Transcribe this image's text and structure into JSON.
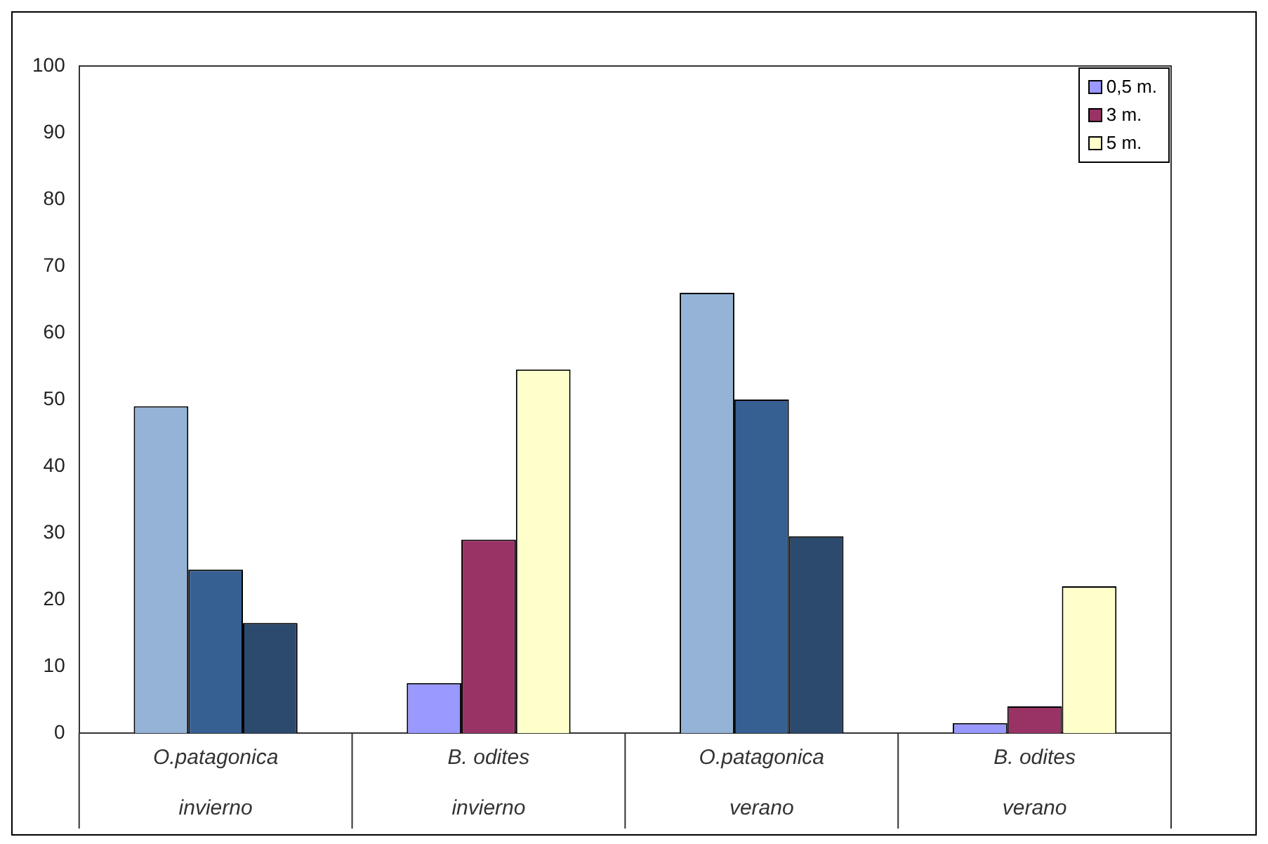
{
  "chart_data": {
    "type": "bar",
    "categories": [
      "O.patagonica\ninvierno",
      "B. odites\ninvierno",
      "O.patagonica\nverano",
      "B. odites\nverano"
    ],
    "series": [
      {
        "name": "0,5 m.",
        "color": "#9999ff",
        "colors": [
          "#95b3d7",
          "#9999ff",
          "#95b3d7",
          "#9999ff"
        ],
        "values": [
          49,
          7.5,
          66,
          1.5
        ]
      },
      {
        "name": "3 m.",
        "color": "#993366",
        "colors": [
          "#376092",
          "#993366",
          "#376092",
          "#993366"
        ],
        "values": [
          24.5,
          29,
          50,
          4
        ]
      },
      {
        "name": "5 m.",
        "color": "#ffffcc",
        "colors": [
          "#2c4a6e",
          "#ffffcc",
          "#2c4a6e",
          "#ffffcc"
        ],
        "values": [
          16.5,
          54.5,
          29.5,
          22
        ]
      }
    ],
    "ylim": [
      0,
      100
    ],
    "yticks": [
      0,
      10,
      20,
      30,
      40,
      50,
      60,
      70,
      80,
      90,
      100
    ],
    "grid": false,
    "legend": "top right"
  }
}
